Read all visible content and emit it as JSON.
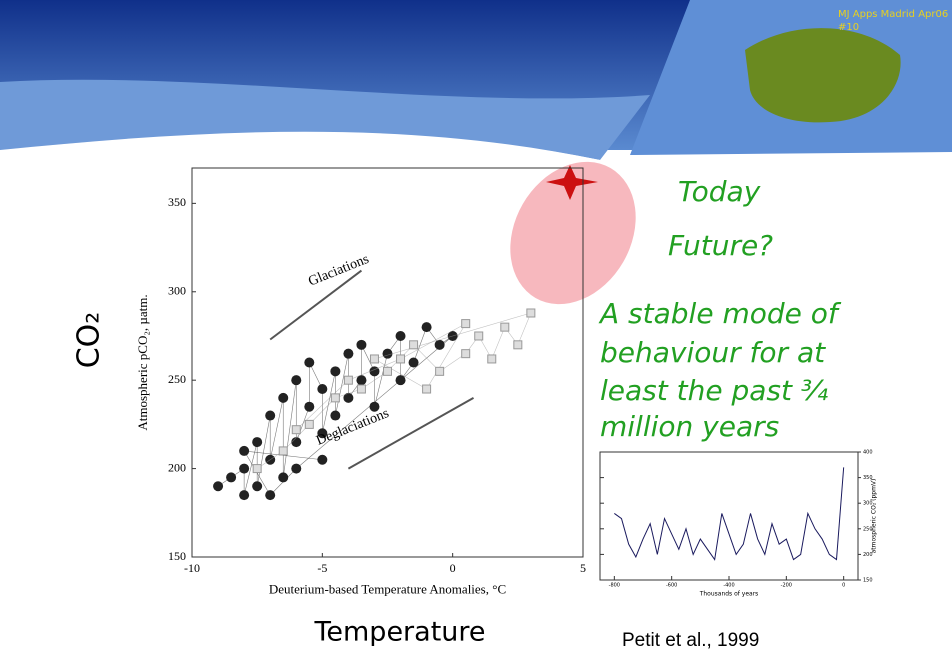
{
  "header": {
    "event": "MJ Apps Madrid Apr06",
    "slide_number": "#10"
  },
  "axis_titles": {
    "y": "CO₂",
    "x": "Temperature"
  },
  "annotations": {
    "today": "Today",
    "future": "Future?",
    "statement": [
      "A stable mode of",
      "behaviour for at",
      "least the past ¾",
      "million years"
    ]
  },
  "citation": "Petit et al., 1999",
  "chart_data": [
    {
      "type": "scatter",
      "x_label": "Deuterium-based Temperature Anomalies, °C",
      "y_label": "Atmospheric pCO₂, µatm.",
      "annotations": [
        "Glaciations",
        "Deglaciations"
      ],
      "xlim": [
        -10,
        5
      ],
      "xticks": [
        -10,
        -5,
        0,
        5
      ],
      "ylim": [
        150,
        370
      ],
      "yticks": [
        150,
        200,
        250,
        300,
        350
      ],
      "series": [
        {
          "color": "#222222",
          "x": [
            -9,
            -8.5,
            -8,
            -8,
            -7.5,
            -7.5,
            -7,
            -7,
            -6.5,
            -6.5,
            -6,
            -6,
            -5.5,
            -5.5,
            -5,
            -5,
            -4.5,
            -4.5,
            -4,
            -4,
            -3.5,
            -3.5,
            -3,
            -3,
            -2.5,
            -2,
            -2,
            -1.5,
            -1,
            -0.5,
            0,
            -6,
            -7,
            -8,
            -5
          ],
          "values": [
            190,
            195,
            200,
            185,
            215,
            190,
            230,
            205,
            240,
            195,
            250,
            215,
            235,
            260,
            245,
            220,
            255,
            230,
            265,
            240,
            250,
            270,
            255,
            235,
            265,
            275,
            250,
            260,
            280,
            270,
            275,
            200,
            185,
            210,
            205
          ]
        },
        {
          "color": "#999999",
          "x": [
            -7.5,
            -6.5,
            -5.5,
            -4.5,
            -3.5,
            -2.5,
            -1.5,
            -0.5,
            0.5,
            1,
            1.5,
            2,
            2.5,
            3,
            -3,
            -1,
            0.5,
            -2,
            -4,
            -6
          ],
          "values": [
            200,
            210,
            225,
            240,
            245,
            255,
            270,
            255,
            265,
            275,
            262,
            280,
            270,
            288,
            262,
            245,
            282,
            262,
            250,
            222
          ]
        }
      ]
    },
    {
      "type": "line",
      "x_label": "Thousands of years",
      "y_label": "atmospheric CO₂ (ppmV)",
      "xlim": [
        -850,
        50
      ],
      "xticks": [
        -800,
        -600,
        -400,
        -200,
        0
      ],
      "ylim": [
        150,
        400
      ],
      "yticks": [
        150,
        200,
        250,
        300,
        350,
        400
      ],
      "series": [
        {
          "color": "#1a1a5e",
          "x": [
            -800,
            -775,
            -750,
            -725,
            -700,
            -675,
            -650,
            -625,
            -600,
            -575,
            -550,
            -525,
            -500,
            -475,
            -450,
            -425,
            -400,
            -375,
            -350,
            -325,
            -300,
            -275,
            -250,
            -225,
            -200,
            -175,
            -150,
            -125,
            -100,
            -75,
            -50,
            -25,
            0
          ],
          "values": [
            280,
            270,
            220,
            195,
            230,
            260,
            200,
            270,
            240,
            210,
            250,
            200,
            230,
            210,
            190,
            280,
            240,
            200,
            220,
            280,
            230,
            200,
            260,
            220,
            230,
            190,
            200,
            280,
            250,
            230,
            200,
            190,
            370
          ]
        }
      ]
    }
  ]
}
